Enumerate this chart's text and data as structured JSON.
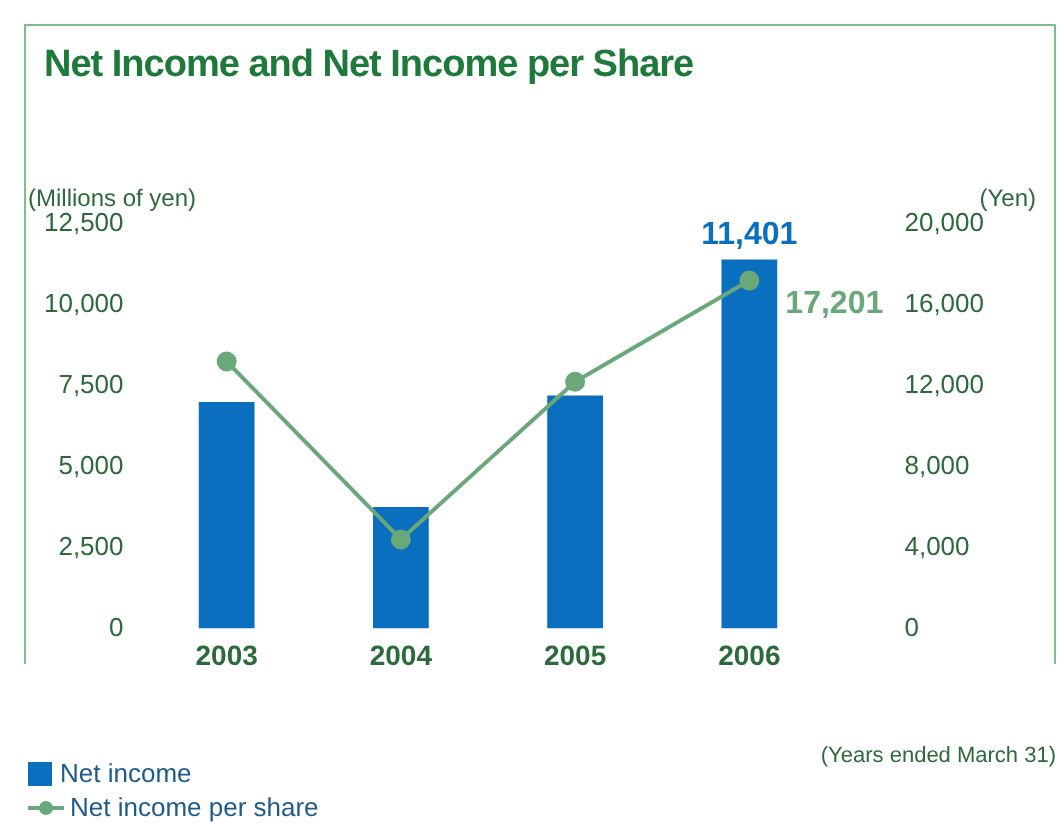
{
  "chart_data": {
    "type": "bar",
    "title": "Net Income and Net Income per Share",
    "ylabel": "(Millions of yen)",
    "y2label": "(Yen)",
    "categories": [
      "2003",
      "2004",
      "2005",
      "2006"
    ],
    "series": [
      {
        "name": "Net income",
        "color": "#0b6fc0",
        "values": [
          7000,
          3750,
          7200,
          11401
        ],
        "value_labels": [
          null,
          null,
          null,
          "11,401"
        ]
      },
      {
        "name": "Net income per share",
        "type": "line",
        "axis": "y2",
        "color": "#6aa87a",
        "values": [
          13200,
          4400,
          12200,
          17201
        ],
        "value_labels": [
          null,
          null,
          null,
          "17,201"
        ]
      }
    ],
    "ylim": [
      0,
      12500
    ],
    "yticks": [
      0,
      {
        "value": 2500,
        "label": "2,500"
      },
      {
        "value": 5000,
        "label": "5,000"
      },
      {
        "value": 7500,
        "label": "7,500"
      },
      {
        "value": 10000,
        "label": "10,000"
      },
      {
        "value": 12500,
        "label": "12,500"
      }
    ],
    "y2lim": [
      0,
      20000
    ],
    "y2ticks": [
      0,
      {
        "value": 4000,
        "label": "4,000"
      },
      {
        "value": 8000,
        "label": "8,000"
      },
      {
        "value": 12000,
        "label": "12,000"
      },
      {
        "value": 16000,
        "label": "16,000"
      },
      {
        "value": 20000,
        "label": "20,000"
      }
    ],
    "grid": false,
    "legend": "bottom left",
    "marker": "circle",
    "line_style": "solid",
    "annotations": [
      "(Years ended March 31)"
    ]
  }
}
